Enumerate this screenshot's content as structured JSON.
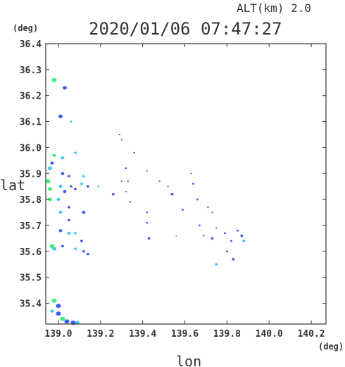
{
  "header": {
    "alt_label": "ALT(km)  2.0",
    "timestamp": "2020/01/06 07:47:27"
  },
  "chart_data": {
    "type": "scatter",
    "title": "2020/01/06 07:47:27",
    "xlabel": "lon",
    "ylabel": "lat",
    "x_unit": "(deg)",
    "y_unit": "(deg)",
    "xlim": [
      138.94,
      140.27
    ],
    "ylim": [
      35.32,
      36.4
    ],
    "x_ticks": [
      139.0,
      139.2,
      139.4,
      139.6,
      139.8,
      140.0,
      140.2
    ],
    "x_tick_labels": [
      "139.0",
      "139.2",
      "139.4",
      "139.6",
      "139.8",
      "140.0",
      "140.2"
    ],
    "y_ticks": [
      35.4,
      35.5,
      35.6,
      35.7,
      35.8,
      35.9,
      36.0,
      36.1,
      36.2,
      36.3,
      36.4
    ],
    "y_tick_labels": [
      "35.4",
      "35.5",
      "35.6",
      "35.7",
      "35.8",
      "35.9",
      "36.0",
      "36.1",
      "36.2",
      "36.3",
      "36.4"
    ],
    "grid": false,
    "colors": {
      "blue": "#3a5cf0",
      "cyan": "#3cc6f0",
      "green": "#3cf07a",
      "frame": "#333333"
    },
    "points": [
      {
        "x": 138.98,
        "y": 36.26,
        "size": 3.5,
        "color": "green"
      },
      {
        "x": 139.03,
        "y": 36.23,
        "size": 3,
        "color": "blue"
      },
      {
        "x": 139.01,
        "y": 36.12,
        "size": 3,
        "color": "blue"
      },
      {
        "x": 139.06,
        "y": 36.1,
        "size": 1.5,
        "color": "cyan"
      },
      {
        "x": 138.98,
        "y": 35.97,
        "size": 2.5,
        "color": "green"
      },
      {
        "x": 139.02,
        "y": 35.96,
        "size": 2.5,
        "color": "cyan"
      },
      {
        "x": 139.08,
        "y": 35.98,
        "size": 2,
        "color": "cyan"
      },
      {
        "x": 138.97,
        "y": 35.94,
        "size": 2.5,
        "color": "blue"
      },
      {
        "x": 138.96,
        "y": 35.92,
        "size": 3,
        "color": "cyan"
      },
      {
        "x": 139.02,
        "y": 35.9,
        "size": 2.5,
        "color": "blue"
      },
      {
        "x": 139.05,
        "y": 35.89,
        "size": 2,
        "color": "blue"
      },
      {
        "x": 139.12,
        "y": 35.89,
        "size": 2,
        "color": "cyan"
      },
      {
        "x": 138.95,
        "y": 35.87,
        "size": 3.5,
        "color": "green"
      },
      {
        "x": 138.96,
        "y": 35.84,
        "size": 3,
        "color": "green"
      },
      {
        "x": 139.01,
        "y": 35.85,
        "size": 2.5,
        "color": "cyan"
      },
      {
        "x": 139.03,
        "y": 35.83,
        "size": 2.5,
        "color": "blue"
      },
      {
        "x": 139.06,
        "y": 35.85,
        "size": 2,
        "color": "blue"
      },
      {
        "x": 139.08,
        "y": 35.84,
        "size": 2,
        "color": "blue"
      },
      {
        "x": 139.11,
        "y": 35.86,
        "size": 2,
        "color": "cyan"
      },
      {
        "x": 139.14,
        "y": 35.85,
        "size": 2,
        "color": "blue"
      },
      {
        "x": 139.19,
        "y": 35.85,
        "size": 1.5,
        "color": "cyan"
      },
      {
        "x": 138.96,
        "y": 35.8,
        "size": 3,
        "color": "green"
      },
      {
        "x": 139.0,
        "y": 35.8,
        "size": 2.5,
        "color": "cyan"
      },
      {
        "x": 139.01,
        "y": 35.75,
        "size": 2.5,
        "color": "cyan"
      },
      {
        "x": 139.05,
        "y": 35.77,
        "size": 2,
        "color": "blue"
      },
      {
        "x": 139.12,
        "y": 35.75,
        "size": 2.5,
        "color": "blue"
      },
      {
        "x": 139.05,
        "y": 35.72,
        "size": 2,
        "color": "blue"
      },
      {
        "x": 139.01,
        "y": 35.68,
        "size": 2.5,
        "color": "blue"
      },
      {
        "x": 139.05,
        "y": 35.67,
        "size": 2.5,
        "color": "cyan"
      },
      {
        "x": 139.08,
        "y": 35.67,
        "size": 2,
        "color": "cyan"
      },
      {
        "x": 139.11,
        "y": 35.64,
        "size": 2,
        "color": "blue"
      },
      {
        "x": 138.97,
        "y": 35.62,
        "size": 3.5,
        "color": "green"
      },
      {
        "x": 138.98,
        "y": 35.61,
        "size": 3,
        "color": "cyan"
      },
      {
        "x": 139.02,
        "y": 35.62,
        "size": 2,
        "color": "blue"
      },
      {
        "x": 139.08,
        "y": 35.61,
        "size": 2,
        "color": "cyan"
      },
      {
        "x": 139.12,
        "y": 35.6,
        "size": 2,
        "color": "blue"
      },
      {
        "x": 139.14,
        "y": 35.59,
        "size": 2,
        "color": "blue"
      },
      {
        "x": 139.29,
        "y": 36.05,
        "size": 1.2,
        "color": "blue"
      },
      {
        "x": 139.3,
        "y": 36.03,
        "size": 1.2,
        "color": "blue"
      },
      {
        "x": 139.36,
        "y": 35.98,
        "size": 1.2,
        "color": "blue"
      },
      {
        "x": 139.32,
        "y": 35.92,
        "size": 1.5,
        "color": "blue"
      },
      {
        "x": 139.3,
        "y": 35.87,
        "size": 1.2,
        "color": "blue"
      },
      {
        "x": 139.33,
        "y": 35.87,
        "size": 1.2,
        "color": "blue"
      },
      {
        "x": 139.42,
        "y": 35.91,
        "size": 1.2,
        "color": "blue"
      },
      {
        "x": 139.32,
        "y": 35.83,
        "size": 1.2,
        "color": "blue"
      },
      {
        "x": 139.26,
        "y": 35.82,
        "size": 2,
        "color": "blue"
      },
      {
        "x": 139.34,
        "y": 35.79,
        "size": 1.2,
        "color": "blue"
      },
      {
        "x": 139.42,
        "y": 35.75,
        "size": 1.5,
        "color": "blue"
      },
      {
        "x": 139.42,
        "y": 35.71,
        "size": 1.5,
        "color": "blue"
      },
      {
        "x": 139.43,
        "y": 35.65,
        "size": 2,
        "color": "blue"
      },
      {
        "x": 139.48,
        "y": 35.87,
        "size": 1.2,
        "color": "blue"
      },
      {
        "x": 139.52,
        "y": 35.85,
        "size": 1.2,
        "color": "blue"
      },
      {
        "x": 139.54,
        "y": 35.82,
        "size": 2,
        "color": "blue"
      },
      {
        "x": 139.59,
        "y": 35.76,
        "size": 1.5,
        "color": "blue"
      },
      {
        "x": 139.63,
        "y": 35.9,
        "size": 1.2,
        "color": "blue"
      },
      {
        "x": 139.64,
        "y": 35.86,
        "size": 1.5,
        "color": "blue"
      },
      {
        "x": 139.66,
        "y": 35.8,
        "size": 1.5,
        "color": "blue"
      },
      {
        "x": 139.71,
        "y": 35.77,
        "size": 1.2,
        "color": "blue"
      },
      {
        "x": 139.73,
        "y": 35.75,
        "size": 1.2,
        "color": "blue"
      },
      {
        "x": 139.56,
        "y": 35.66,
        "size": 1.2,
        "color": "cyan"
      },
      {
        "x": 139.67,
        "y": 35.7,
        "size": 1.5,
        "color": "blue"
      },
      {
        "x": 139.69,
        "y": 35.66,
        "size": 1.2,
        "color": "blue"
      },
      {
        "x": 139.73,
        "y": 35.65,
        "size": 2,
        "color": "blue"
      },
      {
        "x": 139.75,
        "y": 35.69,
        "size": 1.2,
        "color": "blue"
      },
      {
        "x": 139.79,
        "y": 35.67,
        "size": 1.5,
        "color": "blue"
      },
      {
        "x": 139.82,
        "y": 35.64,
        "size": 1.5,
        "color": "blue"
      },
      {
        "x": 139.85,
        "y": 35.68,
        "size": 1.5,
        "color": "blue"
      },
      {
        "x": 139.87,
        "y": 35.66,
        "size": 2,
        "color": "blue"
      },
      {
        "x": 139.88,
        "y": 35.64,
        "size": 2,
        "color": "cyan"
      },
      {
        "x": 139.8,
        "y": 35.6,
        "size": 1.5,
        "color": "blue"
      },
      {
        "x": 139.83,
        "y": 35.57,
        "size": 2,
        "color": "blue"
      },
      {
        "x": 139.75,
        "y": 35.55,
        "size": 2,
        "color": "cyan"
      },
      {
        "x": 138.98,
        "y": 35.41,
        "size": 3.5,
        "color": "green"
      },
      {
        "x": 139.0,
        "y": 35.39,
        "size": 3.5,
        "color": "blue"
      },
      {
        "x": 138.97,
        "y": 35.37,
        "size": 2.5,
        "color": "cyan"
      },
      {
        "x": 139.0,
        "y": 35.36,
        "size": 3.5,
        "color": "blue"
      },
      {
        "x": 139.02,
        "y": 35.34,
        "size": 3.5,
        "color": "green"
      },
      {
        "x": 139.04,
        "y": 35.33,
        "size": 3.5,
        "color": "blue"
      },
      {
        "x": 139.07,
        "y": 35.325,
        "size": 3.5,
        "color": "blue"
      },
      {
        "x": 139.09,
        "y": 35.325,
        "size": 3,
        "color": "cyan"
      }
    ]
  }
}
